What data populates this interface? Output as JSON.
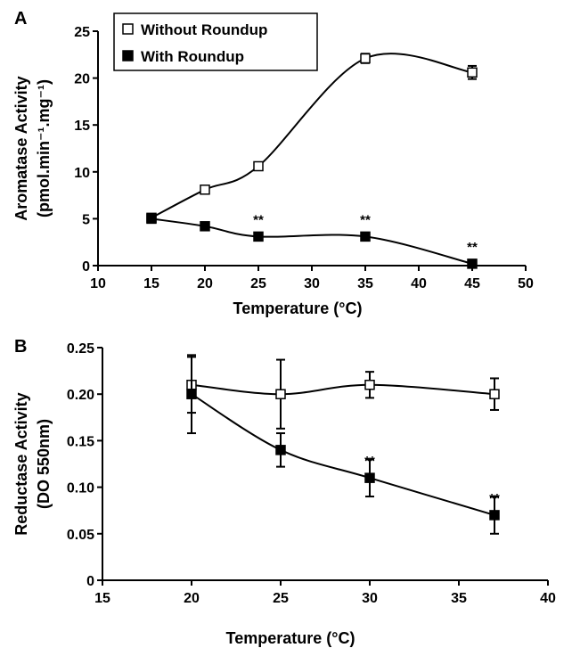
{
  "chart_data": [
    {
      "type": "line",
      "panel_label": "A",
      "xlabel": "Temperature (°C)",
      "ylabel_line1": "Aromatase Activity",
      "ylabel_line2": "(pmol.min⁻¹.mg⁻¹)",
      "xlim": [
        10,
        50
      ],
      "ylim": [
        0,
        25
      ],
      "xticks": [
        10,
        15,
        20,
        25,
        30,
        35,
        40,
        45,
        50
      ],
      "yticks": [
        0,
        5,
        10,
        15,
        20,
        25
      ],
      "legend": {
        "placement": "top-left"
      },
      "series": [
        {
          "name": "Without Roundup",
          "marker": "open-square",
          "x": [
            15,
            20,
            25,
            35,
            45
          ],
          "y": [
            5.1,
            8.1,
            10.6,
            22.1,
            20.6
          ],
          "err": [
            0.2,
            0.2,
            0.3,
            0.5,
            0.7
          ]
        },
        {
          "name": "With Roundup",
          "marker": "filled-square",
          "x": [
            15,
            20,
            25,
            35,
            45
          ],
          "y": [
            5.0,
            4.2,
            3.1,
            3.1,
            0.2
          ],
          "err": [
            0.2,
            0.2,
            0.2,
            0.2,
            0.1
          ]
        }
      ],
      "annotations": [
        {
          "text": "**",
          "x": 25,
          "y": 3.1
        },
        {
          "text": "**",
          "x": 35,
          "y": 3.1
        },
        {
          "text": "**",
          "x": 45,
          "y": 0.2
        }
      ]
    },
    {
      "type": "line",
      "panel_label": "B",
      "xlabel": "Temperature (°C)",
      "ylabel_line1": "Reductase Activity",
      "ylabel_line2": "(DO 550nm)",
      "xlim": [
        15,
        40
      ],
      "ylim": [
        0,
        0.25
      ],
      "xticks": [
        15,
        20,
        25,
        30,
        35,
        40
      ],
      "yticks": [
        "0",
        "0.05",
        "0.10",
        "0.15",
        "0.20",
        "0.25"
      ],
      "series": [
        {
          "name": "Without Roundup",
          "marker": "open-square",
          "x": [
            20,
            25,
            30,
            37
          ],
          "y": [
            0.21,
            0.2,
            0.21,
            0.2
          ],
          "err": [
            0.03,
            0.037,
            0.014,
            0.017
          ]
        },
        {
          "name": "With Roundup",
          "marker": "filled-square",
          "x": [
            20,
            25,
            30,
            37
          ],
          "y": [
            0.2,
            0.14,
            0.11,
            0.07
          ],
          "err": [
            0.042,
            0.018,
            0.02,
            0.02
          ]
        }
      ],
      "annotations": [
        {
          "text": "**",
          "x": 30,
          "y": 0.11
        },
        {
          "text": "**",
          "x": 37,
          "y": 0.07
        }
      ]
    }
  ]
}
